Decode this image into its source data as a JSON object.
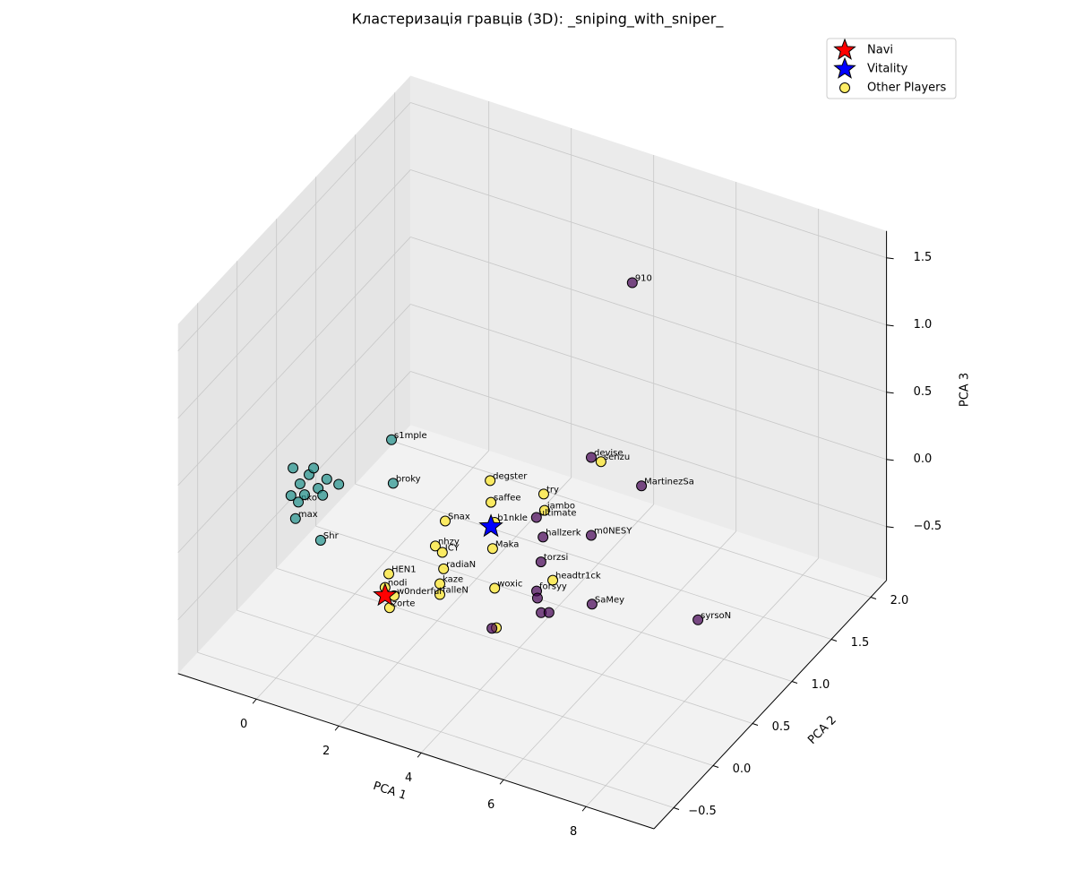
{
  "chart_data": {
    "type": "scatter3d",
    "title": "Кластеризація гравців (3D): _sniping_with_sniper_",
    "xlabel": "PCA 1",
    "ylabel": "PCA 2",
    "zlabel": "PCA 3",
    "xlim": [
      -1.9,
      9.65
    ],
    "ylim": [
      -0.75,
      2.2
    ],
    "zlim": [
      -0.9,
      1.7
    ],
    "xticks": [
      0,
      2,
      4,
      6,
      8
    ],
    "yticks": [
      {
        "value": -0.5,
        "label": "−0.5"
      },
      {
        "value": 0,
        "label": "0.0"
      },
      0.5,
      {
        "value": 1,
        "label": "1.0"
      },
      1.5,
      {
        "value": 2,
        "label": "2.0"
      }
    ],
    "zticks": [
      {
        "value": -0.5,
        "label": "−0.5"
      },
      {
        "value": 0,
        "label": "0.0"
      },
      0.5,
      {
        "value": 1,
        "label": "1.0"
      },
      1.5
    ],
    "grid": true,
    "legend": "upper right",
    "series": [
      {
        "name": "Navi",
        "color": "#ff0000",
        "marker": "star",
        "x": [
          1.69
        ],
        "y": [
          0
        ],
        "z": [
          -0.43
        ]
      },
      {
        "name": "Vitality",
        "color": "#0000ff",
        "marker": "star",
        "x": [
          4.26
        ],
        "y": [
          0
        ],
        "z": [
          0.34
        ]
      },
      {
        "name": "Other Players",
        "color": "#fde725",
        "marker": "circle",
        "x": [
          2.42,
          2.46,
          0.09,
          0.7,
          0.16,
          0.03,
          0.2,
          0.42,
          0.64,
          0.85,
          0.31,
          -0.02,
          0.53,
          1.14,
          0.75,
          4.24,
          4.26,
          5.54,
          5.56,
          3.15,
          4.35,
          4.3,
          2.91,
          3.08,
          3.11,
          1.78,
          1.69,
          3.02,
          3.02,
          4.35,
          1.8,
          5.76,
          6.93,
          1.91,
          4.39,
          4.82,
          4.78,
          6.0,
          3.45,
          3.61,
          4.78,
          3.56,
          4.8,
          7.37,
          4.22,
          4.24,
          4.33,
          4.52,
          3.71
        ],
        "y": [
          -0.3,
          -0.3,
          -0.3,
          -0.3,
          -0.3,
          -0.3,
          -0.3,
          -0.3,
          -0.3,
          -0.3,
          -0.3,
          -0.3,
          -0.3,
          -0.3,
          -0.3,
          0,
          0,
          0,
          0,
          0,
          0,
          0,
          0,
          0,
          0,
          0,
          0,
          0,
          0,
          0,
          0,
          0,
          0,
          0,
          0,
          1.5,
          1,
          1,
          1,
          1,
          1,
          1,
          1,
          1,
          0.6,
          0.6,
          0.6,
          0.6,
          0.3
        ],
        "z": [
          0.99,
          0.67,
          0.17,
          0.07,
          0.3,
          0.54,
          0.44,
          0.53,
          0.45,
          0.54,
          0.37,
          0.33,
          0.59,
          0.53,
          0.41,
          0.68,
          0.52,
          0.71,
          0.59,
          0.27,
          0.38,
          0.18,
          0.06,
          0.03,
          -0.09,
          -0.26,
          -0.37,
          -0.21,
          -0.29,
          -0.11,
          -0.51,
          0.09,
          1.09,
          -0.41,
          -0.4,
          1.27,
          0.28,
          0.19,
          -0.3,
          -0.43,
          -0.3,
          -0.62,
          -0.81,
          -0.67,
          -0.52,
          -0.57,
          -0.67,
          -0.65,
          -0.66
        ],
        "labels": [
          "s1mple",
          "broky",
          "max",
          "Shr",
          "nko",
          null,
          null,
          null,
          null,
          null,
          null,
          null,
          null,
          null,
          null,
          "degster",
          "saffee",
          "try",
          "jambo",
          "Snax",
          "b1nkle",
          "Maka",
          "nhzy",
          "ICY",
          "radiaN",
          "HEN1",
          "nodi",
          "kaze",
          "falleN",
          "woxic",
          "zorte",
          "headtr1ck",
          "senzu",
          "w0nderful",
          null,
          "910",
          "devise",
          "MartinezSa",
          "ultimate",
          "hallzerk",
          "m0NESY",
          "torzsi",
          "SaMey",
          "syrsoN",
          "forsyy",
          null,
          null,
          null,
          null
        ],
        "colors": [
          "#21918c",
          "#21918c",
          "#21918c",
          "#21918c",
          "#21918c",
          "#21918c",
          "#21918c",
          "#21918c",
          "#21918c",
          "#21918c",
          "#21918c",
          "#21918c",
          "#21918c",
          "#21918c",
          "#21918c",
          "#fde725",
          "#fde725",
          "#fde725",
          "#fde725",
          "#fde725",
          "#fde725",
          "#fde725",
          "#fde725",
          "#fde725",
          "#fde725",
          "#fde725",
          "#fde725",
          "#fde725",
          "#fde725",
          "#fde725",
          "#fde725",
          "#fde725",
          "#fde725",
          "#fde725",
          "#fde725",
          "#440154",
          "#440154",
          "#440154",
          "#440154",
          "#440154",
          "#440154",
          "#440154",
          "#440154",
          "#440154",
          "#440154",
          "#440154",
          "#440154",
          "#440154",
          "#440154"
        ]
      }
    ]
  }
}
